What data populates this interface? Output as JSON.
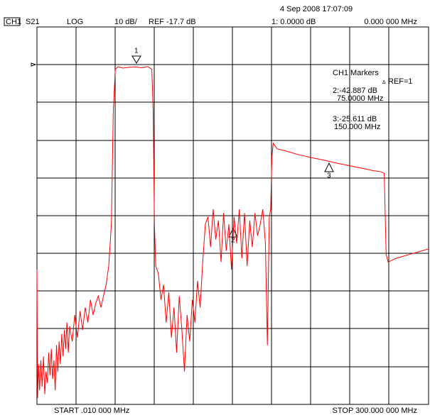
{
  "header": {
    "channel": "CH1",
    "param": "S21",
    "format": "LOG",
    "scale": "10 dB/",
    "ref": "REF -17.7 dB",
    "datetime": "4 Sep 2008  17:07:09",
    "marker_value": "1: 0.0000 dB",
    "marker_freq": "0.000 000 MHz"
  },
  "markers": {
    "title": "CH1 Markers",
    "ref": "REF=1",
    "m2_value": "2:-42.887 dB",
    "m2_freq": "75.0000 MHz",
    "m3_value": "3:-25.611 dB",
    "m3_freq": "150.000 MHz",
    "labels": [
      "1",
      "2",
      "3"
    ]
  },
  "footer": {
    "start": "START  .010 000 MHz",
    "stop": "STOP 300.000 000 MHz"
  },
  "chart_data": {
    "type": "line",
    "color": "#ff0000",
    "xlim": [
      0.01,
      300
    ],
    "ylim": [
      -107.7,
      -7.7
    ],
    "x": [
      0.01,
      0.5,
      1.2,
      2,
      3,
      4,
      5,
      6,
      7,
      8,
      9,
      10,
      11,
      12,
      13,
      14,
      15,
      16,
      17,
      18,
      19,
      20,
      21,
      22,
      23,
      24,
      25,
      27,
      29,
      31,
      33,
      35,
      37,
      39,
      41,
      43,
      45,
      47,
      49,
      51,
      53,
      55,
      57,
      58.5,
      60,
      62,
      66,
      70,
      75,
      80,
      85,
      88,
      89,
      90,
      91,
      93,
      95,
      97,
      99,
      101,
      103,
      105,
      107,
      109,
      111,
      113,
      115,
      117,
      119,
      121,
      123,
      125,
      127,
      129,
      131,
      133,
      135,
      137,
      139,
      141,
      143,
      145,
      147,
      149,
      151,
      153,
      155,
      157,
      159,
      161,
      163,
      165,
      167,
      169,
      171,
      173,
      175,
      176.5,
      178,
      179,
      180,
      181,
      184,
      190,
      200,
      210,
      220,
      230,
      240,
      250,
      258,
      263,
      266,
      267.5,
      269,
      275,
      280,
      285,
      290,
      295,
      300
    ],
    "values": [
      -72,
      -106,
      -97,
      -104,
      -96,
      -103,
      -95,
      -105,
      -99,
      -102,
      -94,
      -100,
      -93,
      -101,
      -96,
      -104,
      -92,
      -99,
      -91,
      -97,
      -89,
      -95,
      -88,
      -93,
      -86,
      -94,
      -87,
      -91,
      -84,
      -90,
      -83,
      -88,
      -82,
      -86,
      -80,
      -84,
      -81,
      -79,
      -82,
      -79,
      -76,
      -71,
      -60,
      -30,
      -19,
      -18.2,
      -18.6,
      -18.4,
      -18.3,
      -18.5,
      -18.2,
      -18.9,
      -30,
      -60,
      -71,
      -73,
      -80,
      -76,
      -86,
      -78,
      -90,
      -82,
      -94,
      -79,
      -88,
      -99,
      -84,
      -91,
      -80,
      -86,
      -75,
      -82,
      -70,
      -60,
      -58,
      -66,
      -56,
      -64,
      -59,
      -70,
      -57,
      -67,
      -60,
      -72,
      -58,
      -65,
      -56,
      -69,
      -57,
      -71,
      -59,
      -66,
      -57,
      -63,
      -60,
      -56,
      -65,
      -92,
      -58,
      -56,
      -42,
      -38.5,
      -40,
      -40.5,
      -41.5,
      -42.3,
      -43,
      -43.8,
      -44.5,
      -45.2,
      -45.8,
      -46,
      -46.5,
      -68,
      -70,
      -69,
      -68.5,
      -68,
      -67.5,
      -67,
      -66.5
    ]
  }
}
